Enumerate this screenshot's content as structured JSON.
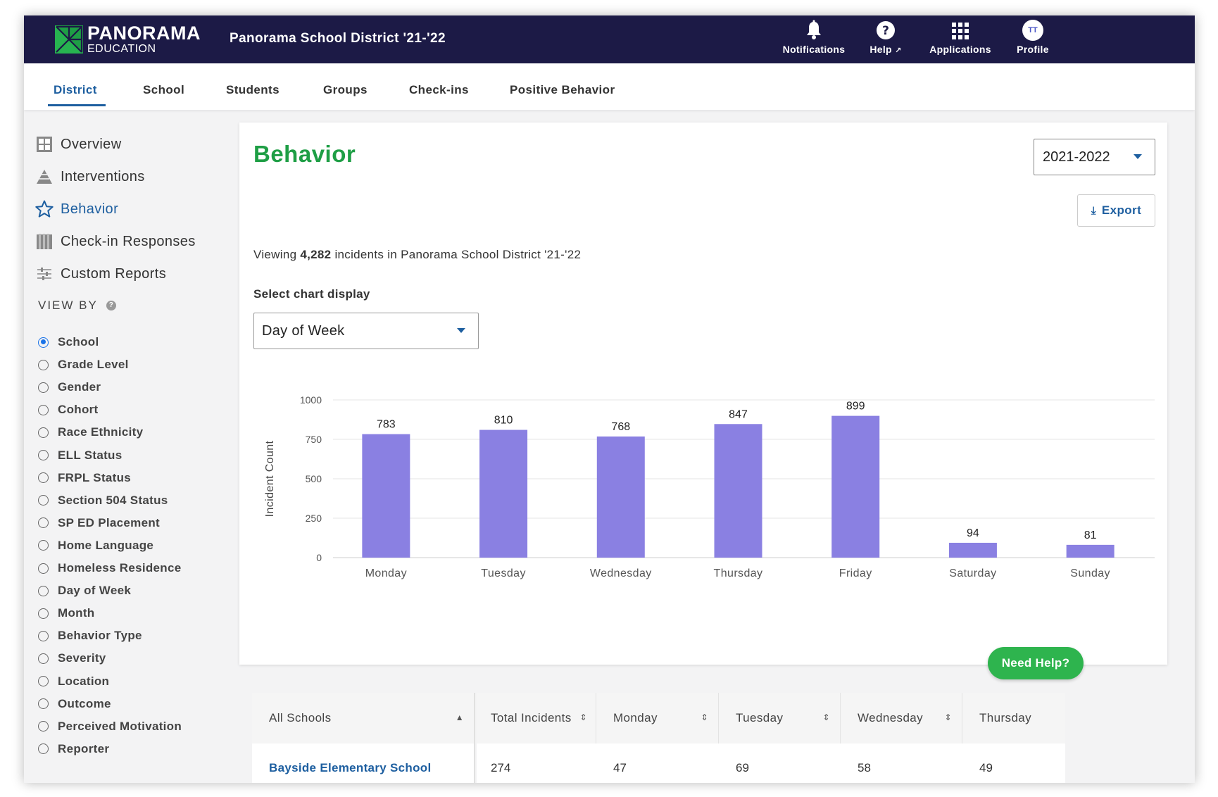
{
  "brand": {
    "name": "PANORAMA",
    "sub": "EDUCATION"
  },
  "header": {
    "district_title": "Panorama School District '21-'22"
  },
  "top_actions": [
    {
      "label": "Notifications",
      "icon": "bell-icon"
    },
    {
      "label": "Help",
      "icon": "question-circle-icon"
    },
    {
      "label": "Applications",
      "icon": "grid-icon"
    },
    {
      "label": "Profile",
      "icon": "avatar",
      "initials": "TT"
    }
  ],
  "tabs": [
    {
      "label": "District",
      "active": true
    },
    {
      "label": "School"
    },
    {
      "label": "Students"
    },
    {
      "label": "Groups"
    },
    {
      "label": "Check-ins"
    },
    {
      "label": "Positive Behavior"
    }
  ],
  "sidebar": {
    "items": [
      {
        "label": "Overview",
        "icon": "overview-icon"
      },
      {
        "label": "Interventions",
        "icon": "pyramid-icon"
      },
      {
        "label": "Behavior",
        "icon": "star-icon",
        "active": true
      },
      {
        "label": "Check-in Responses",
        "icon": "checkin-icon"
      },
      {
        "label": "Custom Reports",
        "icon": "sliders-icon"
      }
    ],
    "view_by_label": "VIEW BY",
    "view_by_options": [
      "School",
      "Grade Level",
      "Gender",
      "Cohort",
      "Race Ethnicity",
      "ELL Status",
      "FRPL Status",
      "Section 504 Status",
      "SP ED Placement",
      "Home Language",
      "Homeless Residence",
      "Day of Week",
      "Month",
      "Behavior Type",
      "Severity",
      "Location",
      "Outcome",
      "Perceived Motivation",
      "Reporter"
    ],
    "view_by_selected": "School"
  },
  "main": {
    "title": "Behavior",
    "year_select": "2021-2022",
    "export_label": "Export",
    "viewing_prefix": "Viewing",
    "viewing_count": "4,282",
    "viewing_suffix": "incidents in Panorama School District '21-'22",
    "select_label": "Select chart display",
    "display_select": "Day of Week"
  },
  "chart_data": {
    "type": "bar",
    "categories": [
      "Monday",
      "Tuesday",
      "Wednesday",
      "Thursday",
      "Friday",
      "Saturday",
      "Sunday"
    ],
    "values": [
      783,
      810,
      768,
      847,
      899,
      94,
      81
    ],
    "ylabel": "Incident Count",
    "yticks": [
      0,
      250,
      500,
      750,
      1000
    ],
    "ylim": [
      0,
      1000
    ],
    "bar_color": "#8a80e2",
    "grid": true
  },
  "table": {
    "columns": [
      "All Schools",
      "Total Incidents",
      "Monday",
      "Tuesday",
      "Wednesday",
      "Thursday"
    ],
    "rows": [
      [
        "Bayside Elementary School",
        "274",
        "47",
        "69",
        "58",
        "49"
      ]
    ]
  },
  "need_help_label": "Need Help?",
  "colors": {
    "nav_bg": "#1c1a46",
    "accent": "#1e5fa0",
    "title_green": "#1e9e45",
    "help_green": "#2eb44e"
  }
}
